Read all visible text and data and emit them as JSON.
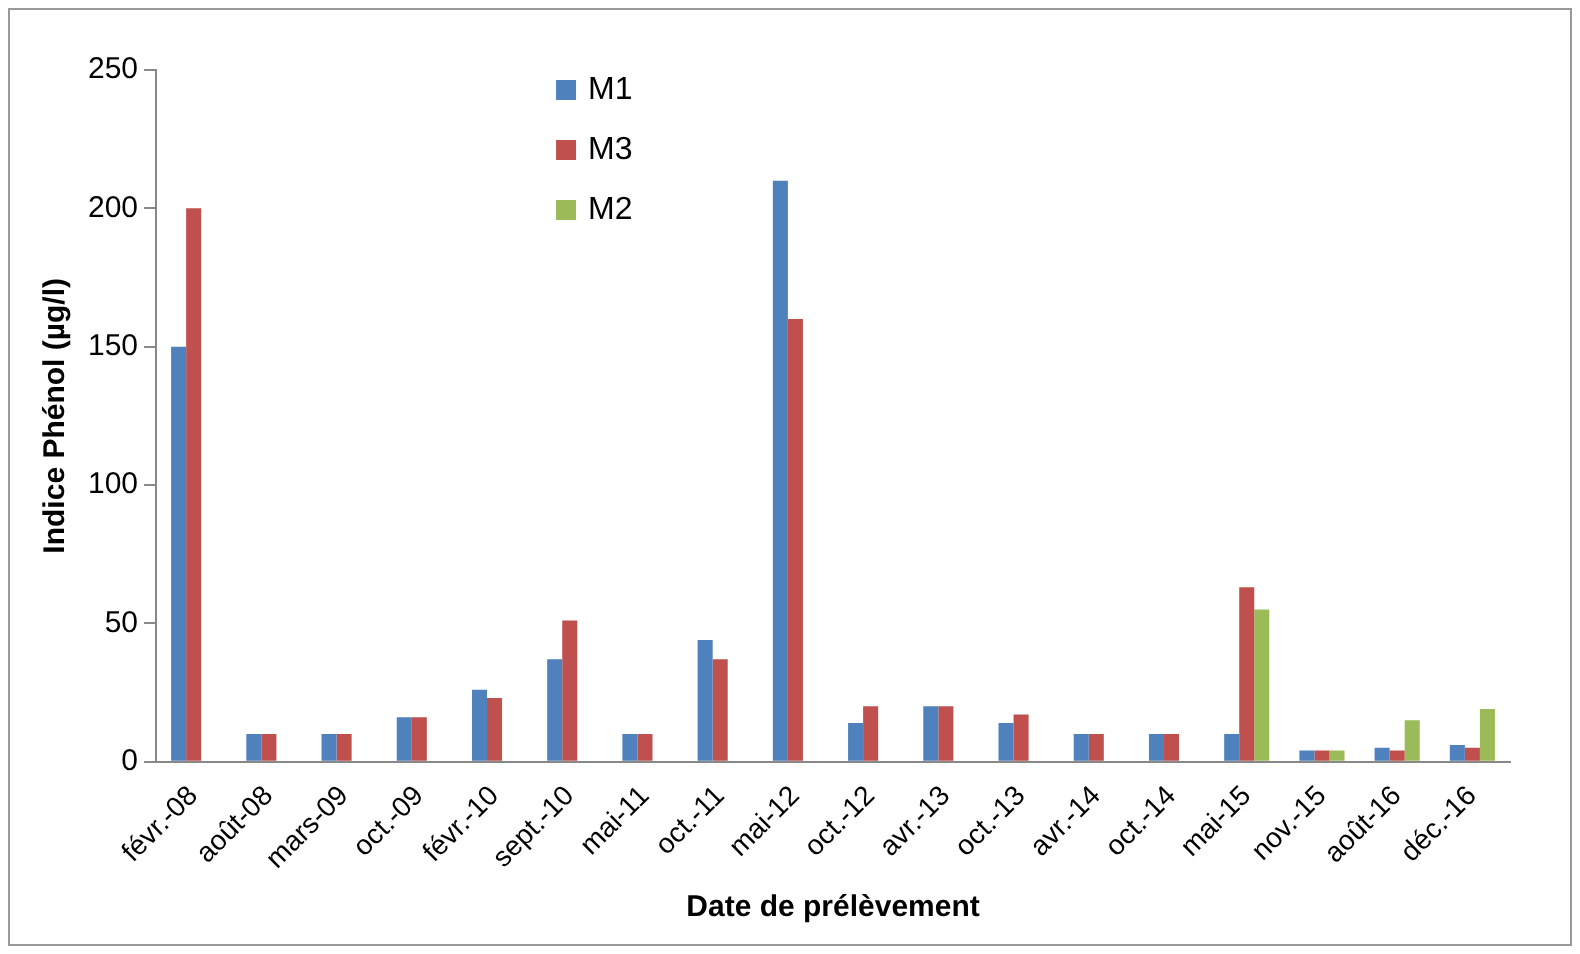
{
  "chart_data": {
    "type": "bar",
    "xlabel": "Date de prélèvement",
    "ylabel": "Indice Phénol (µg/l)",
    "categories": [
      "févr.-08",
      "août-08",
      "mars-09",
      "oct.-09",
      "févr.-10",
      "sept.-10",
      "mai-11",
      "oct.-11",
      "mai-12",
      "oct.-12",
      "avr.-13",
      "oct.-13",
      "avr.-14",
      "oct.-14",
      "mai-15",
      "nov.-15",
      "août-16",
      "déc.-16"
    ],
    "series": [
      {
        "name": "M1",
        "color": "#4f81bd",
        "values": [
          150,
          10,
          10,
          16,
          26,
          37,
          10,
          44,
          210,
          14,
          20,
          14,
          10,
          10,
          10,
          4,
          5,
          6
        ]
      },
      {
        "name": "M3",
        "color": "#c0504d",
        "values": [
          200,
          10,
          10,
          16,
          23,
          51,
          10,
          37,
          160,
          20,
          20,
          17,
          10,
          10,
          63,
          4,
          4,
          5
        ]
      },
      {
        "name": "M2",
        "color": "#9bbb59",
        "values": [
          null,
          null,
          null,
          null,
          null,
          null,
          null,
          null,
          null,
          null,
          null,
          null,
          null,
          null,
          55,
          4,
          15,
          19
        ]
      }
    ],
    "ylim": [
      0,
      250
    ],
    "yticks": [
      0,
      50,
      100,
      150,
      200,
      250
    ],
    "grid": false,
    "legend": "top left"
  }
}
